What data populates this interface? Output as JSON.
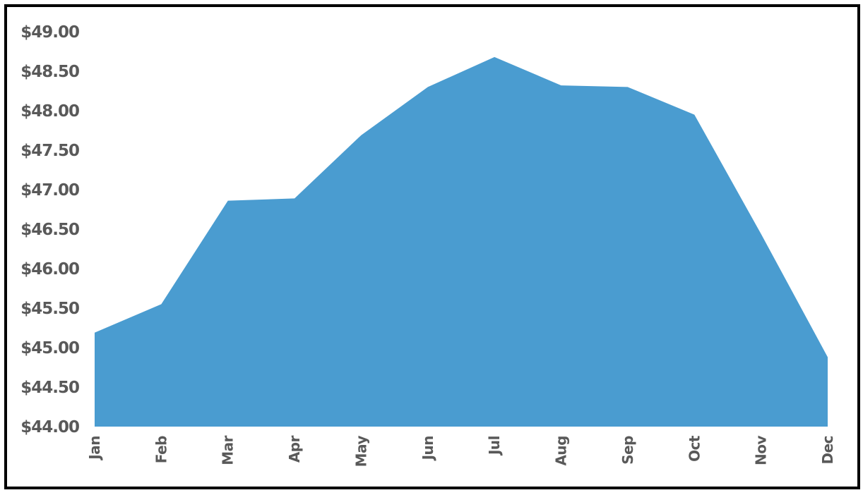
{
  "chart_data": {
    "type": "area",
    "title": "",
    "xlabel": "",
    "ylabel": "",
    "categories": [
      "Jan",
      "Feb",
      "Mar",
      "Apr",
      "May",
      "Jun",
      "Jul",
      "Aug",
      "Sep",
      "Oct",
      "Nov",
      "Dec"
    ],
    "series": [
      {
        "values": [
          45.19,
          45.55,
          46.86,
          46.89,
          47.69,
          48.3,
          48.68,
          48.32,
          48.3,
          47.95,
          46.44,
          44.88
        ],
        "color": "#4a9cd0"
      }
    ],
    "y_ticks": [
      "$44.00",
      "$44.50",
      "$45.00",
      "$45.50",
      "$46.00",
      "$46.50",
      "$47.00",
      "$47.50",
      "$48.00",
      "$48.50",
      "$49.00"
    ],
    "ylim": [
      44,
      49
    ],
    "grid": false,
    "legend": "none"
  }
}
